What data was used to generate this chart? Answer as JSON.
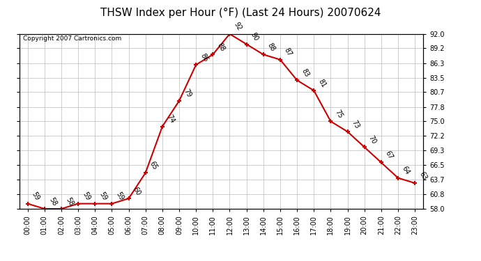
{
  "title": "THSW Index per Hour (°F) (Last 24 Hours) 20070624",
  "copyright": "Copyright 2007 Cartronics.com",
  "hours": [
    "00:00",
    "01:00",
    "02:00",
    "03:00",
    "04:00",
    "05:00",
    "06:00",
    "07:00",
    "08:00",
    "09:00",
    "10:00",
    "11:00",
    "12:00",
    "13:00",
    "14:00",
    "15:00",
    "16:00",
    "17:00",
    "18:00",
    "19:00",
    "20:00",
    "21:00",
    "22:00",
    "23:00"
  ],
  "values": [
    59,
    58,
    58,
    59,
    59,
    59,
    60,
    65,
    74,
    79,
    86,
    88,
    92,
    90,
    88,
    87,
    83,
    81,
    75,
    73,
    70,
    67,
    64,
    63
  ],
  "ylim_min": 58.0,
  "ylim_max": 92.0,
  "yticks": [
    58.0,
    60.8,
    63.7,
    66.5,
    69.3,
    72.2,
    75.0,
    77.8,
    80.7,
    83.5,
    86.3,
    89.2,
    92.0
  ],
  "line_color": "#cc0000",
  "marker_color": "#cc0000",
  "bg_color": "#ffffff",
  "plot_bg_color": "#ffffff",
  "grid_color": "#bbbbbb",
  "title_fontsize": 11,
  "label_fontsize": 7,
  "tick_fontsize": 7,
  "copyright_fontsize": 6.5
}
